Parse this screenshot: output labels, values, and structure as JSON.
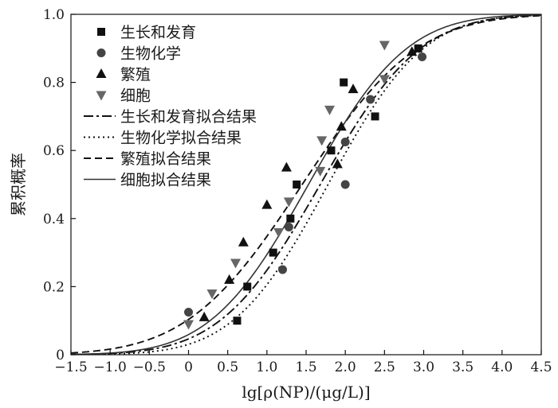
{
  "chart_data": {
    "type": "scatter",
    "title": "",
    "xlabel": "lg[ρ(NP)/(μg/L)]",
    "ylabel": "累积概率",
    "xlim": [
      -1.5,
      4.5
    ],
    "ylim": [
      0,
      1.0
    ],
    "xticks": [
      -1.5,
      -1.0,
      -0.5,
      0,
      0.5,
      1.0,
      1.5,
      2.0,
      2.5,
      3.0,
      3.5,
      4.0,
      4.5
    ],
    "xtick_labels": [
      "−1.5",
      "−1.0",
      "−0.5",
      "0",
      "0.5",
      "1.0",
      "1.5",
      "2.0",
      "2.5",
      "3.0",
      "3.5",
      "4.0",
      "4.5"
    ],
    "yticks": [
      0,
      0.2,
      0.4,
      0.6,
      0.8,
      1.0
    ],
    "ytick_labels": [
      "0",
      "0.2",
      "0.4",
      "0.6",
      "0.8",
      "1.0"
    ],
    "grid": false,
    "legend_position": "top-left",
    "series": [
      {
        "name": "生长和发育",
        "marker": "square",
        "color": "#111111",
        "x": [
          0.62,
          0.75,
          1.08,
          1.3,
          1.38,
          1.82,
          1.98,
          2.38,
          2.93
        ],
        "y": [
          0.1,
          0.2,
          0.3,
          0.4,
          0.5,
          0.6,
          0.8,
          0.7,
          0.9
        ]
      },
      {
        "name": "生物化学",
        "marker": "circle",
        "color": "#444444",
        "x": [
          0.0,
          1.2,
          1.28,
          2.0,
          2.0,
          2.32,
          2.98
        ],
        "y": [
          0.125,
          0.25,
          0.375,
          0.5,
          0.625,
          0.75,
          0.875
        ]
      },
      {
        "name": "繁殖",
        "marker": "triangle-up",
        "color": "#111111",
        "x": [
          0.2,
          0.52,
          0.7,
          1.0,
          1.25,
          1.9,
          1.95,
          2.1,
          2.85
        ],
        "y": [
          0.11,
          0.22,
          0.33,
          0.44,
          0.55,
          0.56,
          0.67,
          0.78,
          0.89
        ]
      },
      {
        "name": "细胞",
        "marker": "triangle-down",
        "color": "#666666",
        "x": [
          0.0,
          0.3,
          0.6,
          1.15,
          1.28,
          1.68,
          1.7,
          1.8,
          2.5,
          2.5
        ],
        "y": [
          0.09,
          0.18,
          0.27,
          0.36,
          0.45,
          0.54,
          0.63,
          0.72,
          0.81,
          0.91
        ]
      }
    ],
    "fits": [
      {
        "name": "生长和发育拟合结果",
        "line_style": "dash-dot",
        "color": "#111111",
        "mu": 1.68,
        "sigma": 1.0
      },
      {
        "name": "生物化学拟合结果",
        "line_style": "dotted",
        "color": "#111111",
        "mu": 1.78,
        "sigma": 0.95
      },
      {
        "name": "繁殖拟合结果",
        "line_style": "dashed",
        "color": "#111111",
        "mu": 1.45,
        "sigma": 1.15
      },
      {
        "name": "细胞拟合结果",
        "line_style": "solid",
        "color": "#333333",
        "mu": 1.53,
        "sigma": 0.98
      }
    ]
  }
}
